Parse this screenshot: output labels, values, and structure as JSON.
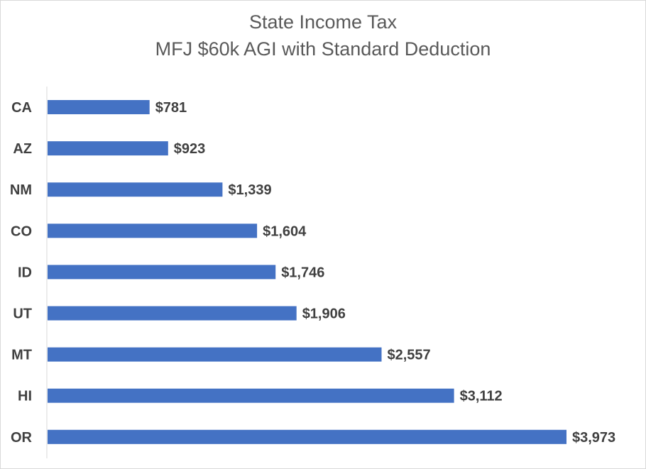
{
  "chart_data": {
    "type": "bar",
    "orientation": "horizontal",
    "title": "State Income Tax",
    "subtitle": "MFJ $60k AGI with Standard Deduction",
    "categories": [
      "CA",
      "AZ",
      "NM",
      "CO",
      "ID",
      "UT",
      "MT",
      "HI",
      "OR"
    ],
    "values": [
      781,
      923,
      1339,
      1604,
      1746,
      1906,
      2557,
      3112,
      3973
    ],
    "data_labels": [
      "$781",
      "$923",
      "$1,339",
      "$1,604",
      "$1,746",
      "$1,906",
      "$2,557",
      "$3,112",
      "$3,973"
    ],
    "xlim": [
      0,
      4000
    ],
    "grid": false,
    "legend": "none",
    "bar_color": "#4472C4"
  }
}
